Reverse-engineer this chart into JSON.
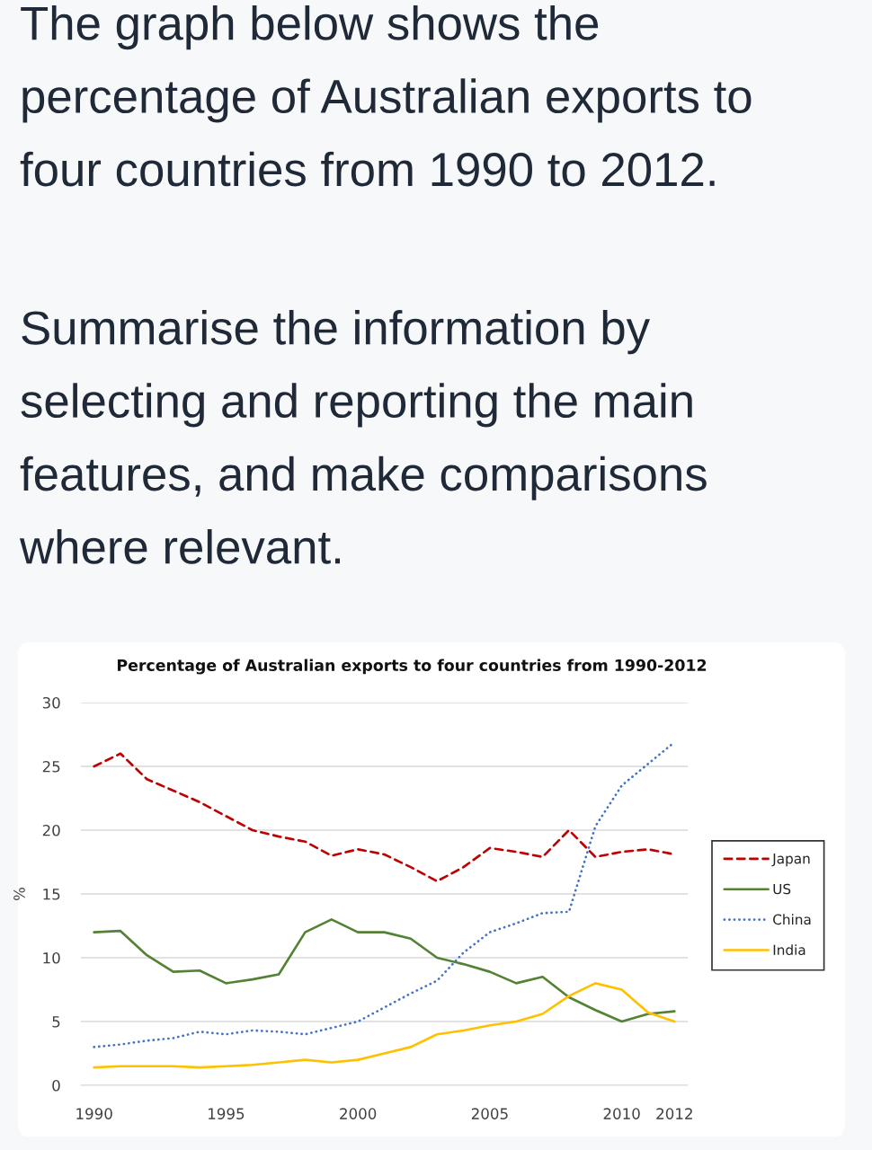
{
  "chart_data": {
    "type": "line",
    "title": "Percentage of Australian exports to four countries from 1990-2012",
    "ylabel": "%",
    "annotations": [
      "The graph below shows the percentage of Australian exports to four countries from 1990 to 2012.",
      "Summarise the information by selecting and reporting the main features, and make comparisons where relevant."
    ],
    "x": [
      1990,
      1991,
      1992,
      1993,
      1994,
      1995,
      1996,
      1997,
      1998,
      1999,
      2000,
      2001,
      2002,
      2003,
      2004,
      2005,
      2006,
      2007,
      2008,
      2009,
      2010,
      2011,
      2012
    ],
    "series": [
      {
        "name": "Japan",
        "color": "#c00000",
        "line_style": "dashed",
        "values": [
          25,
          26,
          24,
          23.1,
          22.2,
          21.1,
          20,
          19.5,
          19.1,
          18,
          18.5,
          18.1,
          17.1,
          16,
          17.1,
          18.6,
          18.3,
          17.9,
          20,
          17.9,
          18.3,
          18.5,
          18.1
        ]
      },
      {
        "name": "US",
        "color": "#548235",
        "line_style": "solid",
        "values": [
          12,
          12.1,
          10.2,
          8.9,
          9,
          8,
          8.3,
          8.7,
          12,
          13,
          12,
          12,
          11.5,
          10,
          9.5,
          8.9,
          8,
          8.5,
          6.9,
          5.9,
          5,
          5.6,
          5.8
        ]
      },
      {
        "name": "China",
        "color": "#4472c4",
        "line_style": "dotted",
        "values": [
          3,
          3.2,
          3.5,
          3.7,
          4.2,
          4,
          4.3,
          4.2,
          4,
          4.5,
          5,
          6.1,
          7.2,
          8.2,
          10.4,
          12,
          12.7,
          13.5,
          13.6,
          20.3,
          23.5,
          25.2,
          26.9
        ]
      },
      {
        "name": "India",
        "color": "#ffc000",
        "line_style": "solid",
        "values": [
          1.4,
          1.5,
          1.5,
          1.5,
          1.4,
          1.5,
          1.6,
          1.8,
          2,
          1.8,
          2,
          2.5,
          3,
          4,
          4.3,
          4.7,
          5,
          5.6,
          7,
          8,
          7.5,
          5.7,
          5
        ]
      }
    ],
    "xlim": [
      1989.5,
      2012.5
    ],
    "xticks": [
      1990,
      1995,
      2000,
      2005,
      2010,
      2012
    ],
    "ylim": [
      0,
      30
    ],
    "yticks": [
      0,
      5,
      10,
      15,
      20,
      25,
      30
    ],
    "grid": "y",
    "legend": "right"
  }
}
